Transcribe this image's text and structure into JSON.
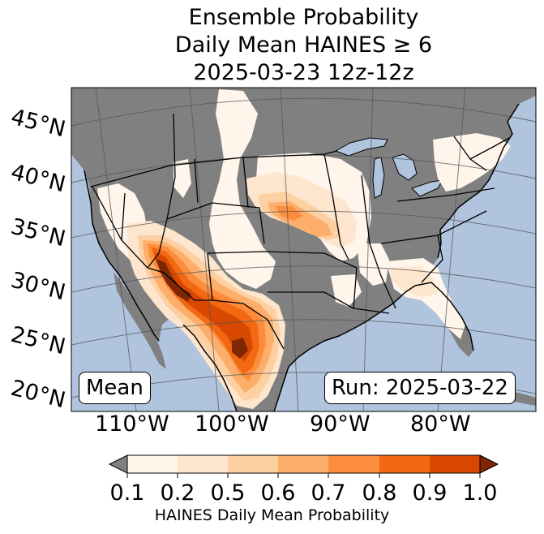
{
  "title": {
    "line1": "Ensemble Probability",
    "line2": "Daily Mean HAINES ≥ 6",
    "line3": "2025-03-23 12z-12z"
  },
  "map": {
    "stat_label": "Mean",
    "run_label": "Run: 2025-03-22",
    "lat_labels": [
      "45°N",
      "40°N",
      "35°N",
      "30°N",
      "25°N",
      "20°N"
    ],
    "lon_labels": [
      "110°W",
      "100°W",
      "90°W",
      "80°W"
    ],
    "colors": {
      "ocean": "#b0c4de",
      "land": "#808080",
      "border": "#000000",
      "grid": "#555555"
    }
  },
  "colorbar": {
    "ticks": [
      "0.1",
      "0.2",
      "0.5",
      "0.6",
      "0.7",
      "0.8",
      "0.9",
      "1.0"
    ],
    "label": "HAINES Daily Mean Probability",
    "colors": [
      "#fff5eb",
      "#fee6ce",
      "#fdd0a2",
      "#fdae6b",
      "#fd8d3c",
      "#f16913",
      "#d94801",
      "#7f2704"
    ],
    "under_color": "#808080"
  }
}
